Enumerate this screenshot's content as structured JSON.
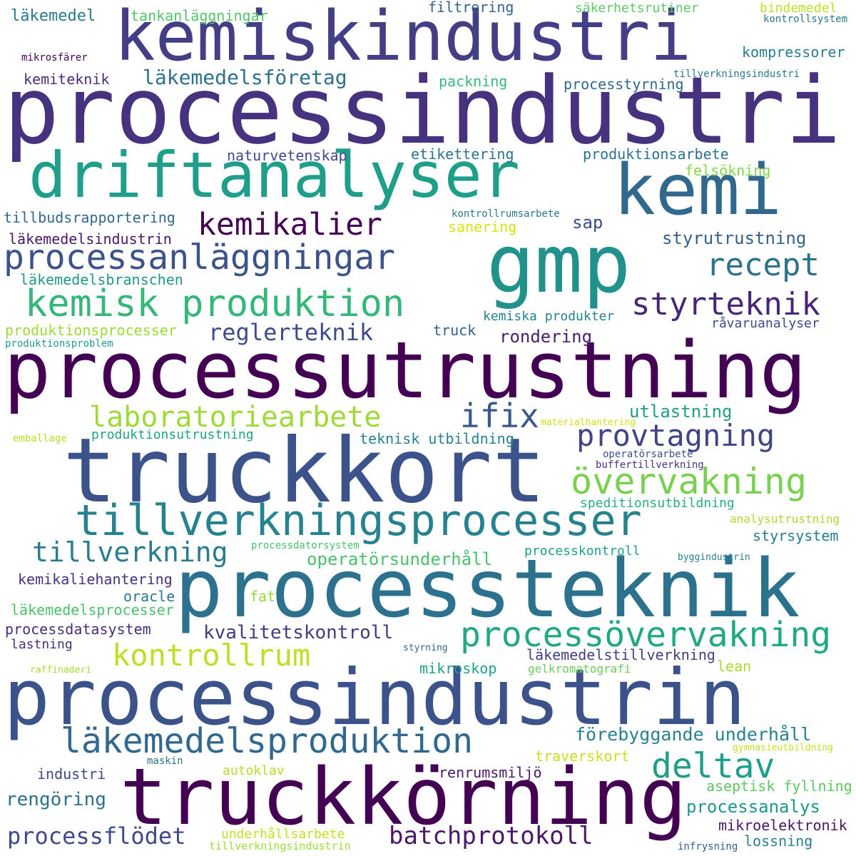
{
  "words": [
    {
      "text": "processindustri",
      "color": "#46327e"
    },
    {
      "text": "kemiskindustri",
      "color": "#433e85"
    },
    {
      "text": "driftanalyser",
      "color": "#1f9e89"
    },
    {
      "text": "kemi",
      "color": "#31688e"
    },
    {
      "text": "gmp",
      "color": "#21918c"
    },
    {
      "text": "kemikalier",
      "color": "#440154"
    },
    {
      "text": "processanläggningar",
      "color": "#3b528b"
    },
    {
      "text": "recept",
      "color": "#2c728e"
    },
    {
      "text": "kemisk produktion",
      "color": "#35b779"
    },
    {
      "text": "styrteknik",
      "color": "#482677"
    },
    {
      "text": "reglerteknik",
      "color": "#3e4a89"
    },
    {
      "text": "processutrustning",
      "color": "#440154"
    },
    {
      "text": "laboratoriearbete",
      "color": "#a0da39"
    },
    {
      "text": "ifix",
      "color": "#38598c"
    },
    {
      "text": "provtagning",
      "color": "#414487"
    },
    {
      "text": "truckkort",
      "color": "#3b528b"
    },
    {
      "text": "övervakning",
      "color": "#7ad151"
    },
    {
      "text": "tillverkningsprocesser",
      "color": "#26828e"
    },
    {
      "text": "tillverkning",
      "color": "#297b8e"
    },
    {
      "text": "processteknik",
      "color": "#2c728e"
    },
    {
      "text": "processövervakning",
      "color": "#22a884"
    },
    {
      "text": "kontrollrum",
      "color": "#bddf26"
    },
    {
      "text": "processindustrin",
      "color": "#3b528b"
    },
    {
      "text": "läkemedelsproduktion",
      "color": "#31688e"
    },
    {
      "text": "deltav",
      "color": "#1f9e89"
    },
    {
      "text": "truckkörning",
      "color": "#440154"
    },
    {
      "text": "processflödet",
      "color": "#3e4a89"
    },
    {
      "text": "batchprotokoll",
      "color": "#48186a"
    },
    {
      "text": "läkemedelsföretag",
      "color": "#2d708e"
    },
    {
      "text": "läkemedel",
      "color": "#287c8e"
    },
    {
      "text": "tankanläggningar",
      "color": "#52c569"
    },
    {
      "text": "filtrering",
      "color": "#33638d"
    },
    {
      "text": "säkerhetsrutiner",
      "color": "#5ec962"
    },
    {
      "text": "bindemedel",
      "color": "#bddf26"
    },
    {
      "text": "kontrollsystem",
      "color": "#2a788e"
    },
    {
      "text": "mikrosfärer",
      "color": "#440154"
    },
    {
      "text": "kompressorer",
      "color": "#287d8e"
    },
    {
      "text": "tillverkningsindustri",
      "color": "#2a788e"
    },
    {
      "text": "kemiteknik",
      "color": "#472d7b"
    },
    {
      "text": "packning",
      "color": "#37b878"
    },
    {
      "text": "processtyrning",
      "color": "#31688e"
    },
    {
      "text": "naturvetenskap",
      "color": "#3e4a89"
    },
    {
      "text": "etikettering",
      "color": "#2c728e"
    },
    {
      "text": "produktionsarbete",
      "color": "#2c728e"
    },
    {
      "text": "felsökning",
      "color": "#86d549"
    },
    {
      "text": "tillbudsrapportering",
      "color": "#31688e"
    },
    {
      "text": "kontrollrumsarbete",
      "color": "#2a788e"
    },
    {
      "text": "sap",
      "color": "#3e4a89"
    },
    {
      "text": "sanering",
      "color": "#d8e219"
    },
    {
      "text": "styrutrustning",
      "color": "#355f8d"
    },
    {
      "text": "läkemedelsindustrin",
      "color": "#48186a"
    },
    {
      "text": "läkemedelsbranschen",
      "color": "#1f988b"
    },
    {
      "text": "kemiska produkter",
      "color": "#25848e"
    },
    {
      "text": "produktionsprocesser",
      "color": "#a0da39"
    },
    {
      "text": "truck",
      "color": "#33638d"
    },
    {
      "text": "rondering",
      "color": "#481f70"
    },
    {
      "text": "råvaruanalyser",
      "color": "#3e4a89"
    },
    {
      "text": "produktionsproblem",
      "color": "#1f9e89"
    },
    {
      "text": "utlastning",
      "color": "#1f9e89"
    },
    {
      "text": "materialhantering",
      "color": "#d0e11c"
    },
    {
      "text": "emballage",
      "color": "#b5de2b"
    },
    {
      "text": "produktionsutrustning",
      "color": "#20a486"
    },
    {
      "text": "teknisk utbildning",
      "color": "#26828e"
    },
    {
      "text": "operatörsarbete",
      "color": "#3b528b"
    },
    {
      "text": "buffertillverkning",
      "color": "#46327e"
    },
    {
      "text": "speditionsutbildning",
      "color": "#29af7f"
    },
    {
      "text": "analysutrustning",
      "color": "#aadc32"
    },
    {
      "text": "styrsystem",
      "color": "#287c8e"
    },
    {
      "text": "processdatorsystem",
      "color": "#4ac16d"
    },
    {
      "text": "processkontroll",
      "color": "#1fa187"
    },
    {
      "text": "operatörsunderhåll",
      "color": "#4ac16d"
    },
    {
      "text": "byggindustrin",
      "color": "#277f8e"
    },
    {
      "text": "kemikaliehantering",
      "color": "#46337f"
    },
    {
      "text": "oracle",
      "color": "#2a788e"
    },
    {
      "text": "fat",
      "color": "#93d741"
    },
    {
      "text": "läkemedelsprocesser",
      "color": "#4ac16d"
    },
    {
      "text": "processdatasystem",
      "color": "#472d7b"
    },
    {
      "text": "kvalitetskontroll",
      "color": "#443a83"
    },
    {
      "text": "lastning",
      "color": "#46327e"
    },
    {
      "text": "styrning",
      "color": "#32648e"
    },
    {
      "text": "läkemedelstillverkning",
      "color": "#433e85"
    },
    {
      "text": "raffinaderi",
      "color": "#a8db34"
    },
    {
      "text": "mikroskop",
      "color": "#1fa187"
    },
    {
      "text": "gelkromatografi",
      "color": "#6ccd5a"
    },
    {
      "text": "lean",
      "color": "#a8db34"
    },
    {
      "text": "förebyggande underhåll",
      "color": "#26828e"
    },
    {
      "text": "gymnasieutbildning",
      "color": "#c2df23"
    },
    {
      "text": "traverskort",
      "color": "#c8e020"
    },
    {
      "text": "maskin",
      "color": "#2d708e"
    },
    {
      "text": "industri",
      "color": "#3e4a89"
    },
    {
      "text": "autoklav",
      "color": "#b5de2b"
    },
    {
      "text": "renrumsmiljö",
      "color": "#481a6c"
    },
    {
      "text": "aseptisk fyllning",
      "color": "#5ec962"
    },
    {
      "text": "rengöring",
      "color": "#2d708e"
    },
    {
      "text": "processanalys",
      "color": "#1f968b"
    },
    {
      "text": "mikroelektronik",
      "color": "#481668"
    },
    {
      "text": "underhållsarbete",
      "color": "#c2df23"
    },
    {
      "text": "tillverkningsindustrin",
      "color": "#a0da39"
    },
    {
      "text": "infrysning",
      "color": "#355f8d"
    },
    {
      "text": "lossning",
      "color": "#26828e"
    }
  ]
}
